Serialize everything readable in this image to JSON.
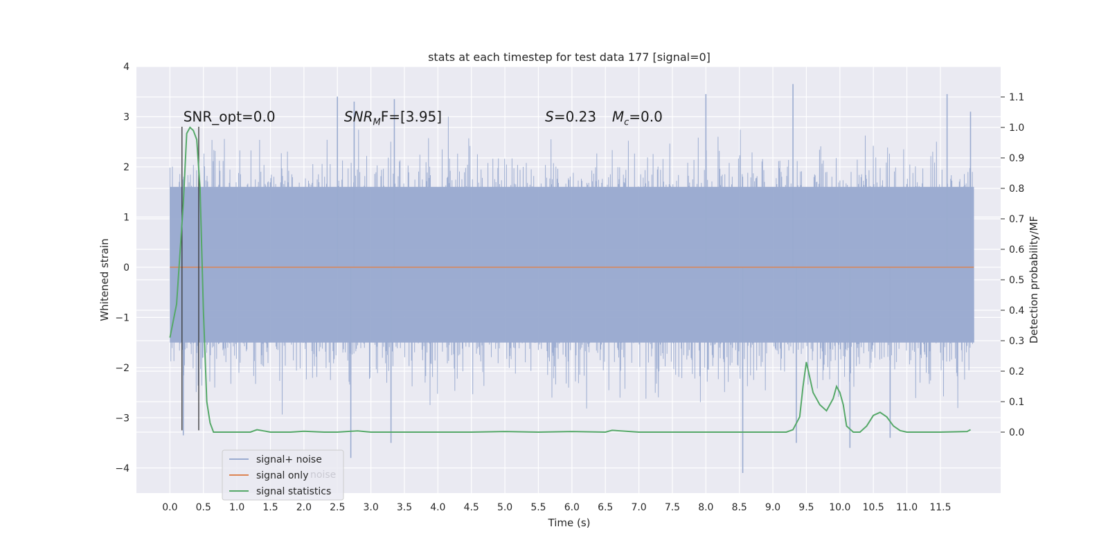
{
  "chart_data": {
    "type": "line",
    "title": "stats at each timestep for test data 177 [signal=0]",
    "xlabel": "Time (s)",
    "ylabel": "Whitened strain",
    "y2label": "Detection probability/MF",
    "xlim": [
      -0.5,
      12.4
    ],
    "ylim": [
      -4.5,
      4.0
    ],
    "y2lim": [
      -0.2,
      1.2
    ],
    "x_ticks": [
      "0.0",
      "0.5",
      "1.0",
      "1.5",
      "2.0",
      "2.5",
      "3.0",
      "3.5",
      "4.0",
      "4.5",
      "5.0",
      "5.5",
      "6.0",
      "6.5",
      "7.0",
      "7.5",
      "8.0",
      "8.5",
      "9.0",
      "9.5",
      "10.0",
      "10.5",
      "11.0",
      "11.5"
    ],
    "y_ticks": [
      "−4",
      "−3",
      "−2",
      "−1",
      "0",
      "1",
      "2",
      "3",
      "4"
    ],
    "y2_ticks": [
      "0.0",
      "0.1",
      "0.2",
      "0.3",
      "0.4",
      "0.5",
      "0.6",
      "0.7",
      "0.8",
      "0.9",
      "1.0",
      "1.1"
    ],
    "grid": true,
    "legend_position": "lower-left",
    "series": [
      {
        "name": "signal+ noise",
        "axis": "left",
        "color": "#9aabd0",
        "style": "dense-noise",
        "x_range": [
          0.0,
          12.0
        ],
        "envelope_typical": [
          -1.5,
          1.6
        ],
        "peaks": [
          {
            "x": 2.5,
            "y": 3.4
          },
          {
            "x": 2.75,
            "y": 3.3
          },
          {
            "x": 3.35,
            "y": 3.35
          },
          {
            "x": 8.0,
            "y": 3.45
          },
          {
            "x": 9.3,
            "y": 3.65
          },
          {
            "x": 11.6,
            "y": 3.45
          },
          {
            "x": 11.95,
            "y": 3.1
          },
          {
            "x": 2.7,
            "y": -3.8
          },
          {
            "x": 3.3,
            "y": -3.5
          },
          {
            "x": 8.55,
            "y": -4.1
          },
          {
            "x": 10.15,
            "y": -3.6
          },
          {
            "x": 9.35,
            "y": -3.5
          },
          {
            "x": 0.2,
            "y": -3.35
          },
          {
            "x": 10.75,
            "y": -3.4
          }
        ]
      },
      {
        "name": "signal only",
        "axis": "left",
        "color": "#dd8452",
        "x": [
          0.0,
          12.0
        ],
        "y": [
          0.0,
          0.0
        ]
      },
      {
        "name": "signal statistics",
        "axis": "right",
        "color": "#55a868",
        "x": [
          0.0,
          0.1,
          0.2,
          0.25,
          0.3,
          0.35,
          0.4,
          0.45,
          0.5,
          0.55,
          0.6,
          0.65,
          0.7,
          0.8,
          1.0,
          1.2,
          1.3,
          1.5,
          1.8,
          2.0,
          2.3,
          2.5,
          2.8,
          3.0,
          3.5,
          4.0,
          4.5,
          5.0,
          5.5,
          6.0,
          6.5,
          6.6,
          7.0,
          7.2,
          7.5,
          8.0,
          8.5,
          9.0,
          9.2,
          9.3,
          9.4,
          9.45,
          9.5,
          9.55,
          9.6,
          9.7,
          9.8,
          9.9,
          9.95,
          10.0,
          10.05,
          10.1,
          10.2,
          10.3,
          10.4,
          10.5,
          10.6,
          10.7,
          10.8,
          10.9,
          11.0,
          11.5,
          11.9,
          11.95
        ],
        "y": [
          0.31,
          0.42,
          0.75,
          0.98,
          1.0,
          0.99,
          0.96,
          0.8,
          0.4,
          0.1,
          0.03,
          0.0,
          0.0,
          0.0,
          0.0,
          0.0,
          0.008,
          0.0,
          0.0,
          0.003,
          0.0,
          0.0,
          0.004,
          0.0,
          0.0,
          0.0,
          0.0,
          0.002,
          0.0,
          0.002,
          0.0,
          0.006,
          0.0,
          0.0,
          0.0,
          0.0,
          0.0,
          0.0,
          0.0,
          0.008,
          0.05,
          0.15,
          0.23,
          0.18,
          0.13,
          0.09,
          0.07,
          0.11,
          0.15,
          0.13,
          0.09,
          0.02,
          0.0,
          0.0,
          0.02,
          0.055,
          0.065,
          0.05,
          0.02,
          0.005,
          0.0,
          0.0,
          0.002,
          0.008
        ]
      }
    ],
    "vlines": [
      {
        "x": 0.18,
        "color": "#333333"
      },
      {
        "x": 0.43,
        "color": "#333333"
      }
    ],
    "annotations": [
      {
        "text": "SNR_opt=0.0",
        "x": 0.2,
        "y": 2.9
      },
      {
        "text": "SNR",
        "sub": "M",
        "rest": "F=[3.95]",
        "x": 2.6,
        "y": 2.9
      },
      {
        "text": "S=0.23",
        "x": 5.6,
        "y": 2.9
      },
      {
        "text": "M",
        "sub": "c",
        "rest": "=0.0",
        "x": 6.6,
        "y": 2.9
      }
    ],
    "legend": [
      "signal+ noise",
      "signal only",
      "signal statistics"
    ],
    "legend_ghost_text": "noise"
  }
}
